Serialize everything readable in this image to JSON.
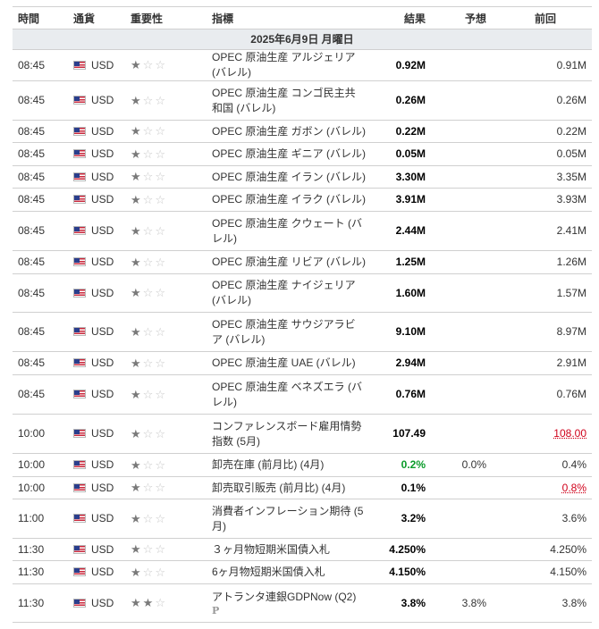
{
  "header": {
    "time": "時間",
    "currency": "通貨",
    "importance": "重要性",
    "indicator": "指標",
    "actual": "結果",
    "forecast": "予想",
    "previous": "前回"
  },
  "date_label": "2025年6月9日 月曜日",
  "rows": [
    {
      "time": "08:45",
      "currency": "USD",
      "stars": 1,
      "event": "OPEC 原油生産 アルジェリア (バレル)",
      "actual": "0.92M",
      "forecast": "",
      "previous": "0.91M",
      "h": 33
    },
    {
      "time": "08:45",
      "currency": "USD",
      "stars": 1,
      "event": "OPEC 原油生産 コンゴ民主共和国 (バレル)",
      "actual": "0.26M",
      "forecast": "",
      "previous": "0.26M",
      "h": 44
    },
    {
      "time": "08:45",
      "currency": "USD",
      "stars": 1,
      "event": "OPEC 原油生産 ガボン (バレル)",
      "actual": "0.22M",
      "forecast": "",
      "previous": "0.22M",
      "h": 25
    },
    {
      "time": "08:45",
      "currency": "USD",
      "stars": 1,
      "event": "OPEC 原油生産 ギニア (バレル)",
      "actual": "0.05M",
      "forecast": "",
      "previous": "0.05M",
      "h": 26
    },
    {
      "time": "08:45",
      "currency": "USD",
      "stars": 1,
      "event": "OPEC 原油生産 イラン (バレル)",
      "actual": "3.30M",
      "forecast": "",
      "previous": "3.35M",
      "h": 25
    },
    {
      "time": "08:45",
      "currency": "USD",
      "stars": 1,
      "event": "OPEC 原油生産 イラク (バレル)",
      "actual": "3.91M",
      "forecast": "",
      "previous": "3.93M",
      "h": 26
    },
    {
      "time": "08:45",
      "currency": "USD",
      "stars": 1,
      "event": "OPEC 原油生産 クウェート (バレル)",
      "actual": "2.44M",
      "forecast": "",
      "previous": "2.41M",
      "h": 44
    },
    {
      "time": "08:45",
      "currency": "USD",
      "stars": 1,
      "event": "OPEC 原油生産 リビア (バレル)",
      "actual": "1.25M",
      "forecast": "",
      "previous": "1.26M",
      "h": 26
    },
    {
      "time": "08:45",
      "currency": "USD",
      "stars": 1,
      "event": "OPEC 原油生産 ナイジェリア (バレル)",
      "actual": "1.60M",
      "forecast": "",
      "previous": "1.57M",
      "h": 43
    },
    {
      "time": "08:45",
      "currency": "USD",
      "stars": 1,
      "event": "OPEC 原油生産 サウジアラビア (バレル)",
      "actual": "9.10M",
      "forecast": "",
      "previous": "8.97M",
      "h": 44
    },
    {
      "time": "08:45",
      "currency": "USD",
      "stars": 1,
      "event": "OPEC 原油生産 UAE (バレル)",
      "actual": "2.94M",
      "forecast": "",
      "previous": "2.91M",
      "h": 26
    },
    {
      "time": "08:45",
      "currency": "USD",
      "stars": 1,
      "event": "OPEC 原油生産 ベネズエラ (バレル)",
      "actual": "0.76M",
      "forecast": "",
      "previous": "0.76M",
      "h": 44
    },
    {
      "time": "10:00",
      "currency": "USD",
      "stars": 1,
      "event": "コンファレンスボード雇用情勢指数 (5月)",
      "actual": "107.49",
      "forecast": "",
      "previous": "108.00",
      "prev_revised": true,
      "h": 44
    },
    {
      "time": "10:00",
      "currency": "USD",
      "stars": 1,
      "event": "卸売在庫 (前月比) (4月)",
      "actual": "0.2%",
      "actual_up": true,
      "forecast": "0.0%",
      "previous": "0.4%",
      "h": 26
    },
    {
      "time": "10:00",
      "currency": "USD",
      "stars": 1,
      "event": "卸売取引販売 (前月比) (4月)",
      "actual": "0.1%",
      "forecast": "",
      "previous": "0.8%",
      "prev_revised": true,
      "h": 25
    },
    {
      "time": "11:00",
      "currency": "USD",
      "stars": 1,
      "event": "消費者インフレーション期待 (5月)",
      "actual": "3.2%",
      "forecast": "",
      "previous": "3.6%",
      "h": 44
    },
    {
      "time": "11:30",
      "currency": "USD",
      "stars": 1,
      "event": "３ヶ月物短期米国債入札",
      "actual": "4.250%",
      "forecast": "",
      "previous": "4.250%",
      "h": 25
    },
    {
      "time": "11:30",
      "currency": "USD",
      "stars": 1,
      "event": "6ヶ月物短期米国債入札",
      "actual": "4.150%",
      "forecast": "",
      "previous": "4.150%",
      "h": 26
    },
    {
      "time": "11:30",
      "currency": "USD",
      "stars": 2,
      "event": "アトランタ連銀GDPNow (Q2)",
      "badge": "P",
      "actual": "3.8%",
      "forecast": "3.8%",
      "previous": "3.8%",
      "h": 43
    }
  ],
  "colors": {
    "positive": "#0a9b2a",
    "revised": "#d0021b",
    "date_bg": "#e9ecef"
  },
  "icons": {
    "flag": "us-flag-icon",
    "star_on": "star-filled-icon",
    "star_off": "star-empty-icon"
  }
}
